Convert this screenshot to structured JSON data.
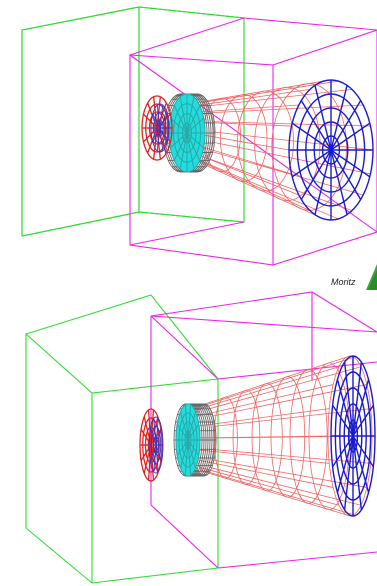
{
  "caption": {
    "text": "Moritz"
  },
  "colors": {
    "background": "#ffffff",
    "bounding_box_outer": "#33dd33",
    "bounding_box_inner": "#ee22ee",
    "cone_mesh": "#ee6666",
    "source_disk": "#dd2222",
    "inner_disk_mesh": "#3333cc",
    "cyan_disk": "#22dddd",
    "gray_rim": "#666666",
    "blue_disk": "#1a1ad0",
    "logo_green": "#3aa53a"
  },
  "icons": {
    "logo": "green-triangle-logo-icon"
  },
  "views": [
    {
      "name": "wireframe-view-top"
    },
    {
      "name": "wireframe-view-bottom"
    }
  ]
}
